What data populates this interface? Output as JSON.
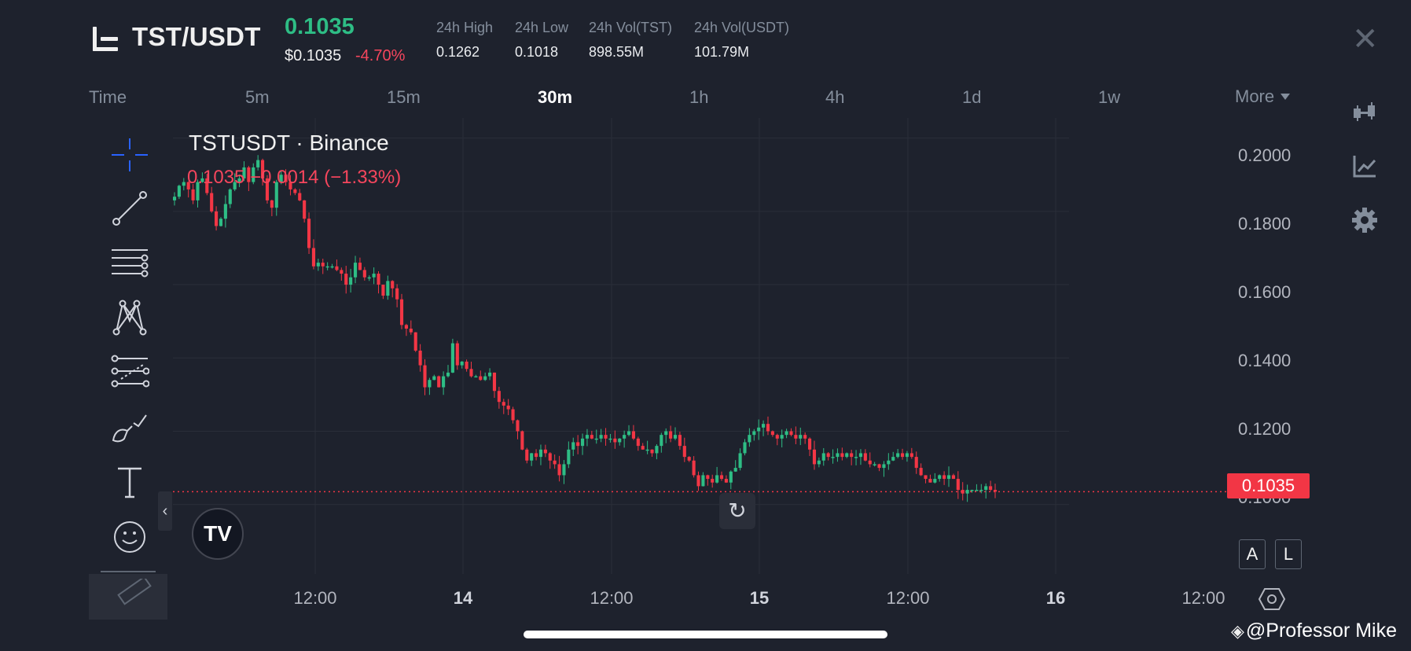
{
  "header": {
    "pair": "TST/USDT",
    "last_price": "0.1035",
    "usd_price": "$0.1035",
    "change_pct": "-4.70%",
    "stats": [
      {
        "label": "24h High",
        "value": "0.1262"
      },
      {
        "label": "24h Low",
        "value": "0.1018"
      },
      {
        "label": "24h Vol(TST)",
        "value": "898.55M"
      },
      {
        "label": "24h Vol(USDT)",
        "value": "101.79M"
      }
    ],
    "close_icon": "close-icon"
  },
  "intervals": {
    "items": [
      "Time",
      "5m",
      "15m",
      "30m",
      "1h",
      "4h",
      "1d",
      "1w",
      "More"
    ],
    "active": "30m"
  },
  "left_toolbar": [
    "crosshair-icon",
    "trend-line-icon",
    "horizontal-lines-icon",
    "pattern-icon",
    "fib-icon",
    "brush-icon",
    "text-icon",
    "emoji-icon",
    "ruler-icon"
  ],
  "right_toolbar": [
    "candlestick-icon",
    "indicator-icon",
    "settings-icon"
  ],
  "chart": {
    "symbol": "TSTUSDT · Binance",
    "ohlc_line": "0.1035 −0.0014 (−1.33%)",
    "logo_text": "TV",
    "current_price_label": "0.1035",
    "y_ticks": [
      "0.2000",
      "0.1800",
      "0.1600",
      "0.1400",
      "0.1200",
      "0.1000"
    ],
    "x_ticks": [
      {
        "label": "12:00",
        "bold": false
      },
      {
        "label": "14",
        "bold": true
      },
      {
        "label": "12:00",
        "bold": false
      },
      {
        "label": "15",
        "bold": true
      },
      {
        "label": "12:00",
        "bold": false
      },
      {
        "label": "16",
        "bold": true
      },
      {
        "label": "12:00",
        "bold": false
      }
    ],
    "auto_label": "A",
    "log_label": "L",
    "colors": {
      "up": "#2ebd85",
      "down": "#f23645",
      "grid": "#2a2e39"
    }
  },
  "chart_data": {
    "type": "candlestick",
    "symbol": "TSTUSDT",
    "ylim": [
      0.095,
      0.2055
    ],
    "y_ticks": [
      0.1,
      0.12,
      0.14,
      0.16,
      0.18,
      0.2
    ],
    "current_price": 0.1035,
    "interval": "30m",
    "grid": true,
    "closes": [
      0.184,
      0.187,
      0.188,
      0.186,
      0.183,
      0.188,
      0.189,
      0.185,
      0.18,
      0.176,
      0.178,
      0.182,
      0.186,
      0.188,
      0.189,
      0.192,
      0.188,
      0.192,
      0.194,
      0.189,
      0.183,
      0.181,
      0.188,
      0.19,
      0.188,
      0.186,
      0.185,
      0.183,
      0.178,
      0.17,
      0.165,
      0.166,
      0.165,
      0.165,
      0.165,
      0.164,
      0.163,
      0.16,
      0.162,
      0.166,
      0.164,
      0.162,
      0.162,
      0.163,
      0.16,
      0.157,
      0.161,
      0.159,
      0.156,
      0.149,
      0.148,
      0.147,
      0.142,
      0.138,
      0.132,
      0.134,
      0.135,
      0.132,
      0.135,
      0.136,
      0.144,
      0.138,
      0.139,
      0.137,
      0.135,
      0.135,
      0.134,
      0.135,
      0.136,
      0.131,
      0.128,
      0.127,
      0.126,
      0.123,
      0.12,
      0.115,
      0.112,
      0.114,
      0.113,
      0.115,
      0.114,
      0.112,
      0.111,
      0.108,
      0.111,
      0.115,
      0.117,
      0.116,
      0.118,
      0.119,
      0.118,
      0.118,
      0.119,
      0.118,
      0.118,
      0.117,
      0.118,
      0.119,
      0.12,
      0.118,
      0.116,
      0.115,
      0.115,
      0.114,
      0.116,
      0.119,
      0.12,
      0.118,
      0.119,
      0.116,
      0.113,
      0.112,
      0.108,
      0.105,
      0.108,
      0.107,
      0.106,
      0.108,
      0.107,
      0.106,
      0.109,
      0.11,
      0.114,
      0.117,
      0.119,
      0.12,
      0.121,
      0.122,
      0.12,
      0.119,
      0.118,
      0.119,
      0.12,
      0.119,
      0.118,
      0.119,
      0.118,
      0.115,
      0.111,
      0.112,
      0.114,
      0.113,
      0.113,
      0.114,
      0.113,
      0.114,
      0.113,
      0.113,
      0.114,
      0.112,
      0.111,
      0.111,
      0.11,
      0.111,
      0.112,
      0.113,
      0.114,
      0.113,
      0.114,
      0.113,
      0.11,
      0.108,
      0.107,
      0.106,
      0.107,
      0.108,
      0.107,
      0.108,
      0.107,
      0.104,
      0.103,
      0.104,
      0.104,
      0.104,
      0.104,
      0.105,
      0.104,
      0.1035
    ]
  },
  "watermark": "@Professor Mike"
}
